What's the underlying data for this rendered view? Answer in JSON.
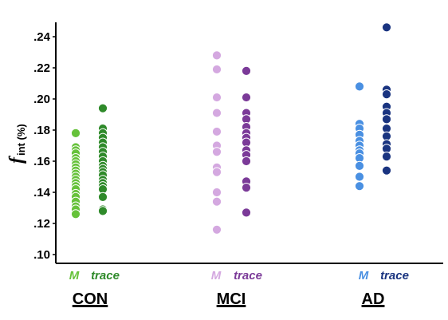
{
  "chart_data": {
    "type": "scatter",
    "ylabel_main": "f",
    "ylabel_sub": "int (%)",
    "yticks": [
      ".10",
      ".12",
      ".14",
      ".16",
      ".18",
      ".20",
      ".22",
      ".24"
    ],
    "ylim": [
      0.1,
      0.25
    ],
    "groups": [
      {
        "name": "CON",
        "series": [
          {
            "name": "M",
            "color": "#66c23a",
            "values": [
              0.178,
              0.169,
              0.167,
              0.165,
              0.162,
              0.16,
              0.158,
              0.156,
              0.154,
              0.152,
              0.15,
              0.148,
              0.146,
              0.144,
              0.142,
              0.139,
              0.137,
              0.134,
              0.131,
              0.129,
              0.126
            ]
          },
          {
            "name": "trace",
            "color": "#2f8a2a",
            "values": [
              0.194,
              0.181,
              0.178,
              0.175,
              0.172,
              0.169,
              0.166,
              0.163,
              0.16,
              0.157,
              0.155,
              0.153,
              0.151,
              0.148,
              0.146,
              0.144,
              0.142,
              0.137,
              0.129,
              0.128
            ]
          }
        ]
      },
      {
        "name": "MCI",
        "series": [
          {
            "name": "M",
            "color": "#d4a8e0",
            "values": [
              0.228,
              0.219,
              0.201,
              0.191,
              0.179,
              0.17,
              0.166,
              0.156,
              0.153,
              0.14,
              0.134,
              0.116
            ]
          },
          {
            "name": "trace",
            "color": "#7b3a98",
            "values": [
              0.218,
              0.201,
              0.191,
              0.187,
              0.182,
              0.178,
              0.175,
              0.172,
              0.167,
              0.164,
              0.16,
              0.147,
              0.143,
              0.127
            ]
          }
        ]
      },
      {
        "name": "AD",
        "series": [
          {
            "name": "M",
            "color": "#4a90e2",
            "values": [
              0.208,
              0.184,
              0.181,
              0.177,
              0.173,
              0.17,
              0.167,
              0.165,
              0.162,
              0.157,
              0.15,
              0.144
            ]
          },
          {
            "name": "trace",
            "color": "#1a3480",
            "values": [
              0.246,
              0.206,
              0.203,
              0.195,
              0.191,
              0.187,
              0.181,
              0.176,
              0.171,
              0.168,
              0.163,
              0.154
            ]
          }
        ]
      }
    ]
  }
}
